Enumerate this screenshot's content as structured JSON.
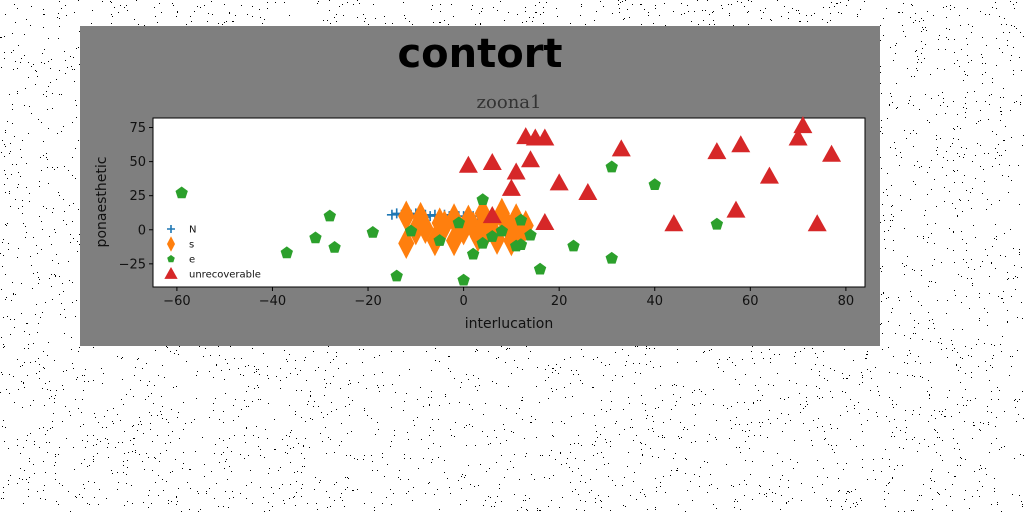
{
  "figure": {
    "suptitle": "contort",
    "title": "zoona1"
  },
  "colors": {
    "panel_background": "#7f7f7f",
    "plot_background": "#ffffff",
    "N": "#1f77b4",
    "s": "#ff7f0e",
    "e": "#2ca02c",
    "unrecoverable": "#d62728"
  },
  "chart_data": {
    "type": "scatter",
    "title": "zoona1",
    "xlabel": "interlucation",
    "ylabel": "ponaesthetic",
    "xlim": [
      -65,
      84
    ],
    "ylim": [
      -42,
      82
    ],
    "xticks": [
      -60,
      -40,
      -20,
      0,
      20,
      40,
      60,
      80
    ],
    "yticks": [
      -25,
      0,
      25,
      50,
      75
    ],
    "grid": false,
    "legend_position": "center-left",
    "series": [
      {
        "name": "N",
        "marker": "plus",
        "points": [
          [
            -15,
            11
          ],
          [
            -14,
            12
          ],
          [
            -13,
            11
          ],
          [
            -12,
            12
          ],
          [
            -11,
            11
          ],
          [
            -10,
            12
          ],
          [
            -9,
            10
          ],
          [
            -8,
            11
          ],
          [
            -7,
            10
          ],
          [
            -6,
            11
          ],
          [
            -5,
            10
          ],
          [
            -4,
            11
          ],
          [
            -3,
            10
          ],
          [
            -2,
            11
          ],
          [
            -1,
            10
          ],
          [
            0,
            10
          ],
          [
            1,
            11
          ],
          [
            2,
            10
          ],
          [
            3,
            10
          ],
          [
            4,
            11
          ],
          [
            5,
            9
          ],
          [
            6,
            10
          ],
          [
            -12,
            9
          ],
          [
            -8,
            9
          ],
          [
            -4,
            9
          ]
        ]
      },
      {
        "name": "s",
        "marker": "thin_diamond",
        "points": [
          [
            -12,
            10
          ],
          [
            -12,
            -10
          ],
          [
            -10,
            0
          ],
          [
            -9,
            9
          ],
          [
            -8,
            1
          ],
          [
            -6,
            -8
          ],
          [
            -5,
            5
          ],
          [
            -4,
            3
          ],
          [
            -2,
            8
          ],
          [
            -2,
            -8
          ],
          [
            0,
            0
          ],
          [
            1,
            7
          ],
          [
            2,
            2
          ],
          [
            3,
            -5
          ],
          [
            4,
            12
          ],
          [
            4,
            3
          ],
          [
            5,
            0
          ],
          [
            6,
            6
          ],
          [
            7,
            -7
          ],
          [
            8,
            12
          ],
          [
            9,
            4
          ],
          [
            10,
            0
          ],
          [
            10,
            -8
          ],
          [
            11,
            8
          ],
          [
            12,
            -2
          ],
          [
            13,
            3
          ]
        ]
      },
      {
        "name": "e",
        "marker": "pentagon",
        "points": [
          [
            -59,
            27
          ],
          [
            -37,
            -17
          ],
          [
            -31,
            -6
          ],
          [
            -28,
            10
          ],
          [
            -27,
            -13
          ],
          [
            -19,
            -2
          ],
          [
            -14,
            -34
          ],
          [
            -11,
            -1
          ],
          [
            -5,
            -8
          ],
          [
            -1,
            5
          ],
          [
            0,
            -37
          ],
          [
            2,
            -18
          ],
          [
            4,
            22
          ],
          [
            4,
            -10
          ],
          [
            6,
            -5
          ],
          [
            8,
            -1
          ],
          [
            11,
            -12
          ],
          [
            12,
            7
          ],
          [
            12,
            -11
          ],
          [
            14,
            -4
          ],
          [
            16,
            -29
          ],
          [
            23,
            -12
          ],
          [
            31,
            46
          ],
          [
            31,
            -21
          ],
          [
            40,
            33
          ],
          [
            53,
            4
          ]
        ]
      },
      {
        "name": "unrecoverable",
        "marker": "triangle",
        "points": [
          [
            1,
            47
          ],
          [
            6,
            49
          ],
          [
            6,
            10
          ],
          [
            10,
            30
          ],
          [
            11,
            42
          ],
          [
            13,
            68
          ],
          [
            14,
            51
          ],
          [
            15,
            67
          ],
          [
            17,
            67
          ],
          [
            17,
            5
          ],
          [
            20,
            34
          ],
          [
            26,
            27
          ],
          [
            33,
            59
          ],
          [
            44,
            4
          ],
          [
            53,
            57
          ],
          [
            57,
            14
          ],
          [
            58,
            62
          ],
          [
            64,
            39
          ],
          [
            70,
            67
          ],
          [
            71,
            76
          ],
          [
            74,
            4
          ],
          [
            77,
            55
          ]
        ]
      }
    ]
  }
}
